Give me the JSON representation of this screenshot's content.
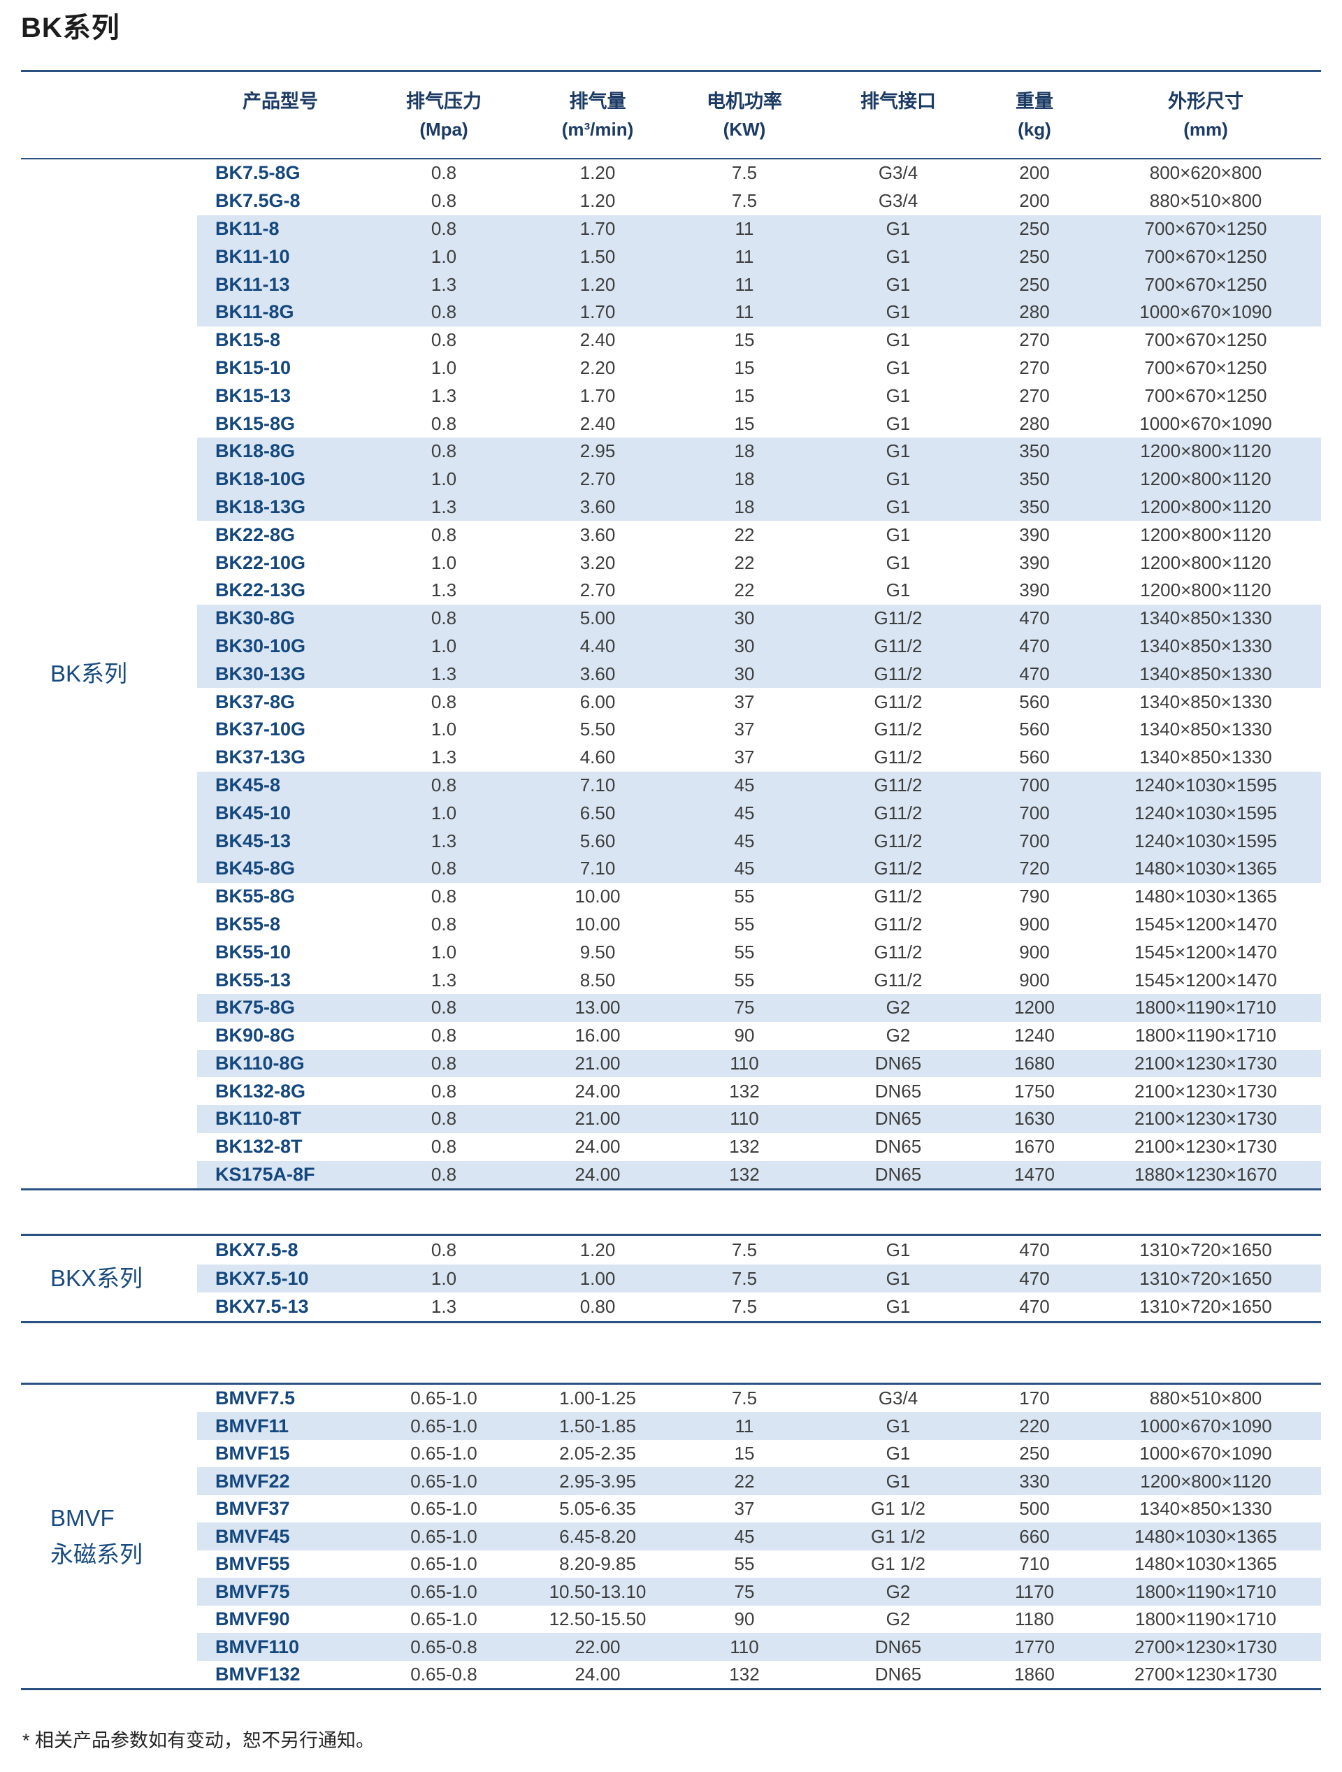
{
  "page_title": "BK系列",
  "footnote": "* 相关产品参数如有变动，恕不另行通知。",
  "colors": {
    "rule_navy": "#2b5183",
    "row_shade": "#d9e5f2",
    "model_text": "#13477d",
    "header_text": "#1b3a64",
    "series_label_text": "#174a80",
    "body_text": "#3d3d3d"
  },
  "columns": [
    {
      "name": "产品型号",
      "unit": ""
    },
    {
      "name": "排气压力",
      "unit": "(Mpa)"
    },
    {
      "name": "排气量",
      "unit": "(m³/min)"
    },
    {
      "name": "电机功率",
      "unit": "(KW)"
    },
    {
      "name": "排气接口",
      "unit": ""
    },
    {
      "name": "重量",
      "unit": "(kg)"
    },
    {
      "name": "外形尺寸",
      "unit": "(mm)"
    }
  ],
  "sections": [
    {
      "label_lines": [
        "BK系列"
      ],
      "rows": [
        {
          "shaded": false,
          "cells": [
            "BK7.5-8G",
            "0.8",
            "1.20",
            "7.5",
            "G3/4",
            "200",
            "800×620×800"
          ]
        },
        {
          "shaded": false,
          "cells": [
            "BK7.5G-8",
            "0.8",
            "1.20",
            "7.5",
            "G3/4",
            "200",
            "880×510×800"
          ]
        },
        {
          "shaded": true,
          "cells": [
            "BK11-8",
            "0.8",
            "1.70",
            "11",
            "G1",
            "250",
            "700×670×1250"
          ]
        },
        {
          "shaded": true,
          "cells": [
            "BK11-10",
            "1.0",
            "1.50",
            "11",
            "G1",
            "250",
            "700×670×1250"
          ]
        },
        {
          "shaded": true,
          "cells": [
            "BK11-13",
            "1.3",
            "1.20",
            "11",
            "G1",
            "250",
            "700×670×1250"
          ]
        },
        {
          "shaded": true,
          "cells": [
            "BK11-8G",
            "0.8",
            "1.70",
            "11",
            "G1",
            "280",
            "1000×670×1090"
          ]
        },
        {
          "shaded": false,
          "cells": [
            "BK15-8",
            "0.8",
            "2.40",
            "15",
            "G1",
            "270",
            "700×670×1250"
          ]
        },
        {
          "shaded": false,
          "cells": [
            "BK15-10",
            "1.0",
            "2.20",
            "15",
            "G1",
            "270",
            "700×670×1250"
          ]
        },
        {
          "shaded": false,
          "cells": [
            "BK15-13",
            "1.3",
            "1.70",
            "15",
            "G1",
            "270",
            "700×670×1250"
          ]
        },
        {
          "shaded": false,
          "cells": [
            "BK15-8G",
            "0.8",
            "2.40",
            "15",
            "G1",
            "280",
            "1000×670×1090"
          ]
        },
        {
          "shaded": true,
          "cells": [
            "BK18-8G",
            "0.8",
            "2.95",
            "18",
            "G1",
            "350",
            "1200×800×1120"
          ]
        },
        {
          "shaded": true,
          "cells": [
            "BK18-10G",
            "1.0",
            "2.70",
            "18",
            "G1",
            "350",
            "1200×800×1120"
          ]
        },
        {
          "shaded": true,
          "cells": [
            "BK18-13G",
            "1.3",
            "3.60",
            "18",
            "G1",
            "350",
            "1200×800×1120"
          ]
        },
        {
          "shaded": false,
          "cells": [
            "BK22-8G",
            "0.8",
            "3.60",
            "22",
            "G1",
            "390",
            "1200×800×1120"
          ]
        },
        {
          "shaded": false,
          "cells": [
            "BK22-10G",
            "1.0",
            "3.20",
            "22",
            "G1",
            "390",
            "1200×800×1120"
          ]
        },
        {
          "shaded": false,
          "cells": [
            "BK22-13G",
            "1.3",
            "2.70",
            "22",
            "G1",
            "390",
            "1200×800×1120"
          ]
        },
        {
          "shaded": true,
          "cells": [
            "BK30-8G",
            "0.8",
            "5.00",
            "30",
            "G11/2",
            "470",
            "1340×850×1330"
          ]
        },
        {
          "shaded": true,
          "cells": [
            "BK30-10G",
            "1.0",
            "4.40",
            "30",
            "G11/2",
            "470",
            "1340×850×1330"
          ]
        },
        {
          "shaded": true,
          "cells": [
            "BK30-13G",
            "1.3",
            "3.60",
            "30",
            "G11/2",
            "470",
            "1340×850×1330"
          ]
        },
        {
          "shaded": false,
          "cells": [
            "BK37-8G",
            "0.8",
            "6.00",
            "37",
            "G11/2",
            "560",
            "1340×850×1330"
          ]
        },
        {
          "shaded": false,
          "cells": [
            "BK37-10G",
            "1.0",
            "5.50",
            "37",
            "G11/2",
            "560",
            "1340×850×1330"
          ]
        },
        {
          "shaded": false,
          "cells": [
            "BK37-13G",
            "1.3",
            "4.60",
            "37",
            "G11/2",
            "560",
            "1340×850×1330"
          ]
        },
        {
          "shaded": true,
          "cells": [
            "BK45-8",
            "0.8",
            "7.10",
            "45",
            "G11/2",
            "700",
            "1240×1030×1595"
          ]
        },
        {
          "shaded": true,
          "cells": [
            "BK45-10",
            "1.0",
            "6.50",
            "45",
            "G11/2",
            "700",
            "1240×1030×1595"
          ]
        },
        {
          "shaded": true,
          "cells": [
            "BK45-13",
            "1.3",
            "5.60",
            "45",
            "G11/2",
            "700",
            "1240×1030×1595"
          ]
        },
        {
          "shaded": true,
          "cells": [
            "BK45-8G",
            "0.8",
            "7.10",
            "45",
            "G11/2",
            "720",
            "1480×1030×1365"
          ]
        },
        {
          "shaded": false,
          "cells": [
            "BK55-8G",
            "0.8",
            "10.00",
            "55",
            "G11/2",
            "790",
            "1480×1030×1365"
          ]
        },
        {
          "shaded": false,
          "cells": [
            "BK55-8",
            "0.8",
            "10.00",
            "55",
            "G11/2",
            "900",
            "1545×1200×1470"
          ]
        },
        {
          "shaded": false,
          "cells": [
            "BK55-10",
            "1.0",
            "9.50",
            "55",
            "G11/2",
            "900",
            "1545×1200×1470"
          ]
        },
        {
          "shaded": false,
          "cells": [
            "BK55-13",
            "1.3",
            "8.50",
            "55",
            "G11/2",
            "900",
            "1545×1200×1470"
          ]
        },
        {
          "shaded": true,
          "cells": [
            "BK75-8G",
            "0.8",
            "13.00",
            "75",
            "G2",
            "1200",
            "1800×1190×1710"
          ]
        },
        {
          "shaded": false,
          "cells": [
            "BK90-8G",
            "0.8",
            "16.00",
            "90",
            "G2",
            "1240",
            "1800×1190×1710"
          ]
        },
        {
          "shaded": true,
          "cells": [
            "BK110-8G",
            "0.8",
            "21.00",
            "110",
            "DN65",
            "1680",
            "2100×1230×1730"
          ]
        },
        {
          "shaded": false,
          "cells": [
            "BK132-8G",
            "0.8",
            "24.00",
            "132",
            "DN65",
            "1750",
            "2100×1230×1730"
          ]
        },
        {
          "shaded": true,
          "cells": [
            "BK110-8T",
            "0.8",
            "21.00",
            "110",
            "DN65",
            "1630",
            "2100×1230×1730"
          ]
        },
        {
          "shaded": false,
          "cells": [
            "BK132-8T",
            "0.8",
            "24.00",
            "132",
            "DN65",
            "1670",
            "2100×1230×1730"
          ]
        },
        {
          "shaded": true,
          "cells": [
            "KS175A-8F",
            "0.8",
            "24.00",
            "132",
            "DN65",
            "1470",
            "1880×1230×1670"
          ]
        }
      ]
    },
    {
      "label_lines": [
        "BKX系列"
      ],
      "rows": [
        {
          "shaded": false,
          "cells": [
            "BKX7.5-8",
            "0.8",
            "1.20",
            "7.5",
            "G1",
            "470",
            "1310×720×1650"
          ]
        },
        {
          "shaded": true,
          "cells": [
            "BKX7.5-10",
            "1.0",
            "1.00",
            "7.5",
            "G1",
            "470",
            "1310×720×1650"
          ]
        },
        {
          "shaded": false,
          "cells": [
            "BKX7.5-13",
            "1.3",
            "0.80",
            "7.5",
            "G1",
            "470",
            "1310×720×1650"
          ]
        }
      ]
    },
    {
      "label_lines": [
        "BMVF",
        "永磁系列"
      ],
      "rows": [
        {
          "shaded": false,
          "cells": [
            "BMVF7.5",
            "0.65-1.0",
            "1.00-1.25",
            "7.5",
            "G3/4",
            "170",
            "880×510×800"
          ]
        },
        {
          "shaded": true,
          "cells": [
            "BMVF11",
            "0.65-1.0",
            "1.50-1.85",
            "11",
            "G1",
            "220",
            "1000×670×1090"
          ]
        },
        {
          "shaded": false,
          "cells": [
            "BMVF15",
            "0.65-1.0",
            "2.05-2.35",
            "15",
            "G1",
            "250",
            "1000×670×1090"
          ]
        },
        {
          "shaded": true,
          "cells": [
            "BMVF22",
            "0.65-1.0",
            "2.95-3.95",
            "22",
            "G1",
            "330",
            "1200×800×1120"
          ]
        },
        {
          "shaded": false,
          "cells": [
            "BMVF37",
            "0.65-1.0",
            "5.05-6.35",
            "37",
            "G1 1/2",
            "500",
            "1340×850×1330"
          ]
        },
        {
          "shaded": true,
          "cells": [
            "BMVF45",
            "0.65-1.0",
            "6.45-8.20",
            "45",
            "G1 1/2",
            "660",
            "1480×1030×1365"
          ]
        },
        {
          "shaded": false,
          "cells": [
            "BMVF55",
            "0.65-1.0",
            "8.20-9.85",
            "55",
            "G1 1/2",
            "710",
            "1480×1030×1365"
          ]
        },
        {
          "shaded": true,
          "cells": [
            "BMVF75",
            "0.65-1.0",
            "10.50-13.10",
            "75",
            "G2",
            "1170",
            "1800×1190×1710"
          ]
        },
        {
          "shaded": false,
          "cells": [
            "BMVF90",
            "0.65-1.0",
            "12.50-15.50",
            "90",
            "G2",
            "1180",
            "1800×1190×1710"
          ]
        },
        {
          "shaded": true,
          "cells": [
            "BMVF110",
            "0.65-0.8",
            "22.00",
            "110",
            "DN65",
            "1770",
            "2700×1230×1730"
          ]
        },
        {
          "shaded": false,
          "cells": [
            "BMVF132",
            "0.65-0.8",
            "24.00",
            "132",
            "DN65",
            "1860",
            "2700×1230×1730"
          ]
        }
      ]
    }
  ]
}
